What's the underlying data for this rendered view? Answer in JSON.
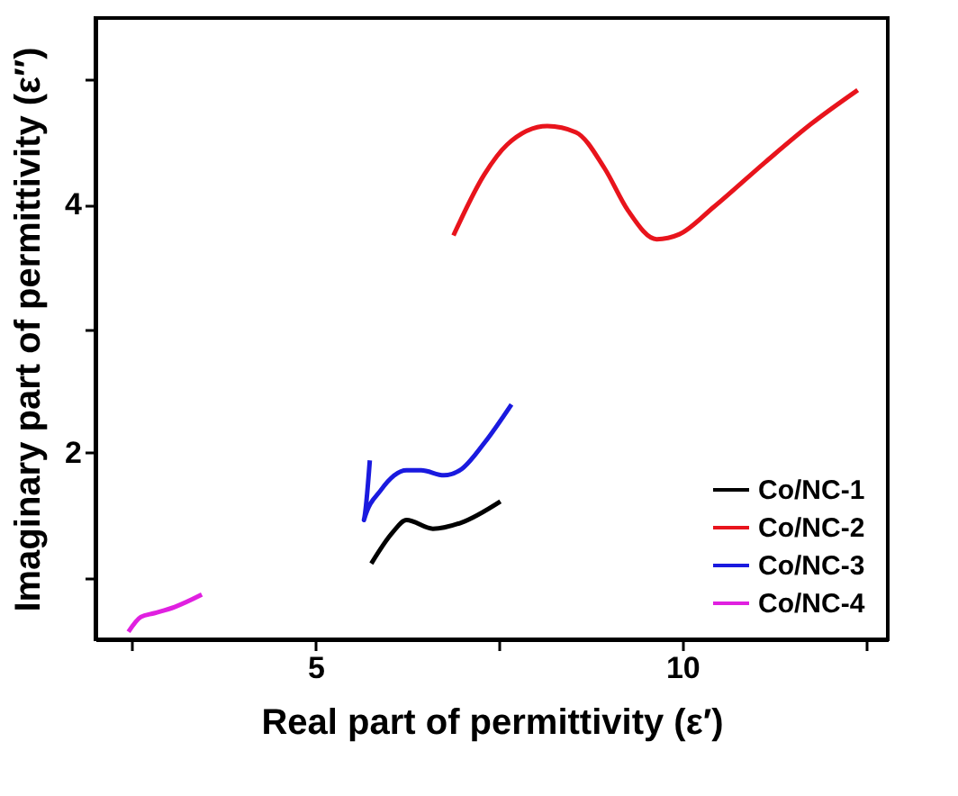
{
  "chart_data": {
    "type": "line",
    "xlabel": "Real part of permittivity (ε′)",
    "ylabel": "Imaginary part of permittivity (ε″)",
    "xlim": [
      2,
      12.8
    ],
    "ylim": [
      0.5,
      5.5
    ],
    "xticks": [
      {
        "value": 2.5,
        "label": null
      },
      5,
      {
        "value": 7.5,
        "label": null
      },
      10,
      {
        "value": 12.5,
        "label": null
      }
    ],
    "yticks": [
      {
        "value": 1,
        "label": null
      },
      2,
      {
        "value": 3,
        "label": null
      },
      4,
      {
        "value": 5,
        "label": null
      }
    ],
    "grid": false,
    "legend": "bottom right",
    "line_style": "solid",
    "series": [
      {
        "name": "Co/NC-1",
        "color": "#000000",
        "x": [
          5.76,
          6.05,
          6.24,
          6.6,
          6.99,
          7.52
        ],
        "values": [
          1.11,
          1.36,
          1.46,
          1.39,
          1.44,
          1.61
        ]
      },
      {
        "name": "Co/NC-2",
        "color": "#e8141c",
        "x": [
          6.88,
          7.3,
          7.61,
          8.16,
          8.55,
          8.94,
          9.26,
          9.65,
          9.96,
          10.43,
          11.13,
          11.76,
          12.39
        ],
        "values": [
          3.75,
          4.24,
          4.48,
          4.63,
          4.58,
          4.29,
          3.95,
          3.72,
          3.76,
          3.98,
          4.34,
          4.65,
          4.92
        ]
      },
      {
        "name": "Co/NC-3",
        "color": "#1a1adf",
        "x": [
          5.74,
          5.66,
          5.89,
          6.24,
          6.44,
          6.75,
          6.99,
          7.3,
          7.67
        ],
        "values": [
          1.94,
          1.46,
          1.7,
          1.86,
          1.86,
          1.82,
          1.87,
          2.08,
          2.39
        ]
      },
      {
        "name": "Co/NC-4",
        "color": "#e020e0",
        "x": [
          2.45,
          2.62,
          2.8,
          3.08,
          3.45
        ],
        "values": [
          0.56,
          0.68,
          0.71,
          0.76,
          0.86
        ]
      }
    ]
  }
}
